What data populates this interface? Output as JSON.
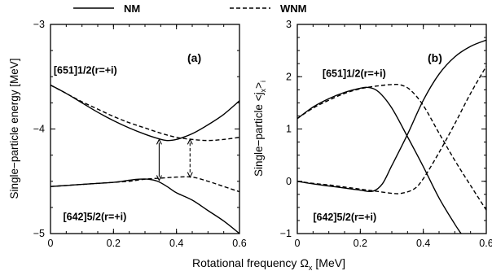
{
  "legend": [
    {
      "label": "NM",
      "style": "solid"
    },
    {
      "label": "WNM",
      "style": "dashed"
    }
  ],
  "xlabel": "Rotational  frequency",
  "xlabel_symbol": "Ω",
  "xlabel_sub": "x",
  "xlabel_unit": "[MeV]",
  "chart_data": [
    {
      "type": "line",
      "panel_label": "(a)",
      "ylabel": "Single−particle  energy [MeV]",
      "xlim": [
        0,
        0.6
      ],
      "ylim": [
        -5,
        -3
      ],
      "xticks": [
        0,
        0.2,
        0.4,
        0.6
      ],
      "xtick_labels": [
        "0",
        "0.2",
        "0.4",
        "0.6"
      ],
      "yticks": [
        -5,
        -4,
        -3
      ],
      "ytick_labels": [
        "−5",
        "−4",
        "−3"
      ],
      "annotations": [
        {
          "text": "[651]1/2(r=+i)",
          "x": 0.01,
          "y": -3.47
        },
        {
          "text": "[642]5/2(r=+i)",
          "x": 0.04,
          "y": -4.87
        }
      ],
      "series": [
        {
          "style": "solid",
          "points": [
            [
              0,
              -3.58
            ],
            [
              0.05,
              -3.66
            ],
            [
              0.1,
              -3.75
            ],
            [
              0.15,
              -3.84
            ],
            [
              0.2,
              -3.92
            ],
            [
              0.25,
              -3.99
            ],
            [
              0.3,
              -4.05
            ],
            [
              0.34,
              -4.09
            ],
            [
              0.37,
              -4.11
            ],
            [
              0.4,
              -4.1
            ],
            [
              0.43,
              -4.07
            ],
            [
              0.46,
              -4.03
            ],
            [
              0.5,
              -3.96
            ],
            [
              0.55,
              -3.86
            ],
            [
              0.6,
              -3.73
            ]
          ]
        },
        {
          "style": "solid",
          "points": [
            [
              0,
              -4.55
            ],
            [
              0.05,
              -4.54
            ],
            [
              0.1,
              -4.53
            ],
            [
              0.15,
              -4.52
            ],
            [
              0.2,
              -4.51
            ],
            [
              0.25,
              -4.49
            ],
            [
              0.28,
              -4.48
            ],
            [
              0.31,
              -4.48
            ],
            [
              0.34,
              -4.5
            ],
            [
              0.37,
              -4.55
            ],
            [
              0.4,
              -4.61
            ],
            [
              0.45,
              -4.68
            ],
            [
              0.5,
              -4.78
            ],
            [
              0.55,
              -4.88
            ],
            [
              0.6,
              -5.0
            ]
          ]
        },
        {
          "style": "dashed",
          "points": [
            [
              0,
              -3.58
            ],
            [
              0.05,
              -3.66
            ],
            [
              0.1,
              -3.74
            ],
            [
              0.15,
              -3.81
            ],
            [
              0.2,
              -3.88
            ],
            [
              0.25,
              -3.94
            ],
            [
              0.3,
              -3.99
            ],
            [
              0.35,
              -4.04
            ],
            [
              0.4,
              -4.08
            ],
            [
              0.45,
              -4.1
            ],
            [
              0.5,
              -4.11
            ],
            [
              0.55,
              -4.1
            ],
            [
              0.6,
              -4.08
            ]
          ]
        },
        {
          "style": "dashed",
          "points": [
            [
              0,
              -4.55
            ],
            [
              0.05,
              -4.54
            ],
            [
              0.1,
              -4.53
            ],
            [
              0.15,
              -4.52
            ],
            [
              0.2,
              -4.51
            ],
            [
              0.25,
              -4.5
            ],
            [
              0.3,
              -4.48
            ],
            [
              0.35,
              -4.47
            ],
            [
              0.4,
              -4.46
            ],
            [
              0.45,
              -4.46
            ],
            [
              0.5,
              -4.5
            ],
            [
              0.55,
              -4.55
            ],
            [
              0.6,
              -4.6
            ]
          ]
        }
      ],
      "arrows": [
        {
          "style": "solid",
          "x": 0.345,
          "y1": -4.1,
          "y2": -4.49
        },
        {
          "style": "dashed",
          "x": 0.443,
          "y1": -4.1,
          "y2": -4.46
        }
      ]
    },
    {
      "type": "line",
      "panel_label": "(b)",
      "ylabel": "Single−particle  <j",
      "ylabel_sub": "x",
      "ylabel_tail": ">",
      "ylabel_sub2": "i",
      "xlim": [
        0,
        0.6
      ],
      "ylim": [
        -1,
        3
      ],
      "xticks": [
        0,
        0.2,
        0.4,
        0.6
      ],
      "xtick_labels": [
        "0",
        "0.2",
        "0.4",
        "0.6"
      ],
      "yticks": [
        -1,
        0,
        1,
        2,
        3
      ],
      "ytick_labels": [
        "−1",
        "0",
        "1",
        "2",
        "3"
      ],
      "annotations": [
        {
          "text": "[651]1/2(r=+i)",
          "x": 0.08,
          "y": 2.0
        },
        {
          "text": "[642]5/2(r=+i)",
          "x": 0.05,
          "y": -0.75
        }
      ],
      "series": [
        {
          "style": "solid",
          "points": [
            [
              0,
              1.2
            ],
            [
              0.05,
              1.42
            ],
            [
              0.1,
              1.58
            ],
            [
              0.15,
              1.7
            ],
            [
              0.2,
              1.78
            ],
            [
              0.23,
              1.79
            ],
            [
              0.26,
              1.7
            ],
            [
              0.3,
              1.4
            ],
            [
              0.35,
              0.85
            ],
            [
              0.4,
              0.28
            ],
            [
              0.45,
              -0.32
            ],
            [
              0.5,
              -0.82
            ],
            [
              0.52,
              -1.0
            ]
          ]
        },
        {
          "style": "solid",
          "points": [
            [
              0,
              0.0
            ],
            [
              0.05,
              -0.05
            ],
            [
              0.1,
              -0.09
            ],
            [
              0.15,
              -0.13
            ],
            [
              0.2,
              -0.17
            ],
            [
              0.24,
              -0.19
            ],
            [
              0.27,
              -0.05
            ],
            [
              0.3,
              0.3
            ],
            [
              0.35,
              0.9
            ],
            [
              0.4,
              1.55
            ],
            [
              0.45,
              2.05
            ],
            [
              0.5,
              2.38
            ],
            [
              0.55,
              2.58
            ],
            [
              0.6,
              2.7
            ]
          ]
        },
        {
          "style": "dashed",
          "points": [
            [
              0,
              1.2
            ],
            [
              0.05,
              1.4
            ],
            [
              0.1,
              1.55
            ],
            [
              0.15,
              1.68
            ],
            [
              0.2,
              1.77
            ],
            [
              0.25,
              1.82
            ],
            [
              0.3,
              1.85
            ],
            [
              0.33,
              1.84
            ],
            [
              0.36,
              1.74
            ],
            [
              0.4,
              1.45
            ],
            [
              0.45,
              0.92
            ],
            [
              0.5,
              0.4
            ],
            [
              0.55,
              -0.08
            ],
            [
              0.6,
              -0.55
            ]
          ]
        },
        {
          "style": "dashed",
          "points": [
            [
              0,
              0.0
            ],
            [
              0.05,
              -0.04
            ],
            [
              0.1,
              -0.07
            ],
            [
              0.15,
              -0.11
            ],
            [
              0.2,
              -0.15
            ],
            [
              0.25,
              -0.19
            ],
            [
              0.3,
              -0.23
            ],
            [
              0.33,
              -0.23
            ],
            [
              0.37,
              -0.15
            ],
            [
              0.4,
              0.05
            ],
            [
              0.45,
              0.55
            ],
            [
              0.5,
              1.1
            ],
            [
              0.55,
              1.68
            ],
            [
              0.6,
              2.2
            ]
          ]
        }
      ]
    }
  ]
}
